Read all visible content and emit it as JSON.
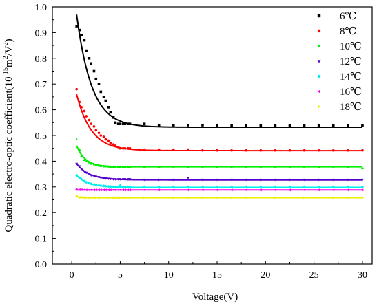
{
  "chart_data": {
    "type": "scatter",
    "xlabel": "Voltage(V)",
    "ylabel_parts": [
      "Quadratic electro-optic coefficient(10",
      "-15",
      "m",
      "2",
      "/V",
      "2",
      ")"
    ],
    "xlim": [
      -2,
      31
    ],
    "ylim": [
      0,
      1.0
    ],
    "xticks": [
      0,
      5,
      10,
      15,
      20,
      25,
      30
    ],
    "yticks": [
      0.0,
      0.1,
      0.2,
      0.3,
      0.4,
      0.5,
      0.6,
      0.7,
      0.8,
      0.9,
      1.0
    ],
    "xtick_labels": [
      "0",
      "5",
      "10",
      "15",
      "20",
      "25",
      "30"
    ],
    "ytick_labels": [
      "0.0",
      "0.1",
      "0.2",
      "0.3",
      "0.4",
      "0.5",
      "0.6",
      "0.7",
      "0.8",
      "0.9",
      "1.0"
    ],
    "grid": false,
    "legend_position": "top-right",
    "series": [
      {
        "name": "6℃",
        "color": "#000000",
        "marker": "square",
        "base": 0.532,
        "start": 0.97,
        "decay": 1.55,
        "x": [
          0.5,
          0.8,
          1.0,
          1.3,
          1.5,
          1.8,
          2.0,
          2.3,
          2.5,
          2.8,
          3.0,
          3.3,
          3.5,
          3.8,
          4.0,
          4.3,
          4.5,
          4.8,
          5.0,
          5.3,
          5.5,
          5.8,
          6.0,
          7.5,
          9,
          10.5,
          12,
          13.5,
          15,
          16.5,
          18,
          19.5,
          21,
          22.5,
          24,
          25.5,
          27,
          28.5,
          30
        ],
        "y": [
          0.925,
          0.91,
          0.89,
          0.87,
          0.83,
          0.8,
          0.78,
          0.75,
          0.72,
          0.7,
          0.67,
          0.65,
          0.635,
          0.61,
          0.59,
          0.57,
          0.55,
          0.545,
          0.545,
          0.545,
          0.545,
          0.545,
          0.545,
          0.545,
          0.54,
          0.54,
          0.54,
          0.54,
          0.538,
          0.538,
          0.538,
          0.538,
          0.538,
          0.538,
          0.538,
          0.538,
          0.538,
          0.538,
          0.538
        ]
      },
      {
        "name": "8℃",
        "color": "#ff0000",
        "marker": "circle",
        "base": 0.441,
        "start": 0.66,
        "decay": 1.5,
        "x": [
          0.5,
          0.8,
          1.0,
          1.3,
          1.5,
          1.8,
          2.0,
          2.3,
          2.5,
          2.8,
          3.0,
          3.3,
          3.5,
          3.8,
          4.0,
          4.3,
          4.5,
          4.8,
          5.0,
          5.3,
          5.5,
          5.8,
          6.0,
          7.5,
          9,
          10.5,
          12,
          13.5,
          15,
          16.5,
          18,
          19.5,
          21,
          22.5,
          24,
          25.5,
          27,
          28.5,
          30
        ],
        "y": [
          0.68,
          0.63,
          0.61,
          0.595,
          0.575,
          0.56,
          0.545,
          0.535,
          0.52,
          0.51,
          0.5,
          0.495,
          0.485,
          0.48,
          0.47,
          0.465,
          0.46,
          0.455,
          0.45,
          0.45,
          0.45,
          0.45,
          0.45,
          0.445,
          0.445,
          0.445,
          0.445,
          0.442,
          0.442,
          0.442,
          0.442,
          0.442,
          0.442,
          0.442,
          0.442,
          0.442,
          0.442,
          0.442,
          0.442
        ]
      },
      {
        "name": "10℃",
        "color": "#00ee00",
        "marker": "triangle-up",
        "base": 0.378,
        "start": 0.46,
        "decay": 0.9,
        "x": [
          0.5,
          0.8,
          1.0,
          1.3,
          1.5,
          1.8,
          2.0,
          2.3,
          2.5,
          2.8,
          3.0,
          3.3,
          3.5,
          3.8,
          4.0,
          4.3,
          4.5,
          4.8,
          5.0,
          5.3,
          5.5,
          5.8,
          6.0,
          7.5,
          9,
          10.5,
          12,
          13.5,
          15,
          16.5,
          18,
          19.5,
          21,
          22.5,
          24,
          25.5,
          27,
          28.5,
          30
        ],
        "y": [
          0.485,
          0.445,
          0.42,
          0.405,
          0.4,
          0.395,
          0.39,
          0.388,
          0.385,
          0.383,
          0.381,
          0.38,
          0.38,
          0.379,
          0.378,
          0.378,
          0.378,
          0.378,
          0.378,
          0.378,
          0.378,
          0.378,
          0.378,
          0.378,
          0.378,
          0.376,
          0.376,
          0.376,
          0.376,
          0.376,
          0.376,
          0.376,
          0.376,
          0.376,
          0.376,
          0.376,
          0.376,
          0.376,
          0.373
        ]
      },
      {
        "name": "12℃",
        "color": "#5500cc",
        "marker": "triangle-down",
        "base": 0.327,
        "start": 0.39,
        "decay": 1.3,
        "x": [
          0.5,
          0.8,
          1.0,
          1.3,
          1.5,
          1.8,
          2.0,
          2.3,
          2.5,
          2.8,
          3.0,
          3.3,
          3.5,
          3.8,
          4.0,
          4.3,
          4.5,
          4.8,
          5.0,
          5.3,
          5.5,
          5.8,
          6.0,
          7.5,
          9,
          10.5,
          12,
          13.5,
          15,
          16.5,
          18,
          19.5,
          21,
          22.5,
          24,
          25.5,
          27,
          28.5,
          30
        ],
        "y": [
          0.39,
          0.38,
          0.37,
          0.36,
          0.355,
          0.35,
          0.345,
          0.342,
          0.34,
          0.338,
          0.336,
          0.334,
          0.333,
          0.332,
          0.331,
          0.33,
          0.33,
          0.33,
          0.33,
          0.33,
          0.33,
          0.33,
          0.33,
          0.328,
          0.328,
          0.328,
          0.335,
          0.328,
          0.328,
          0.328,
          0.328,
          0.328,
          0.328,
          0.328,
          0.328,
          0.328,
          0.328,
          0.328,
          0.328
        ]
      },
      {
        "name": "14℃",
        "color": "#00eeee",
        "marker": "diamond",
        "base": 0.298,
        "start": 0.345,
        "decay": 1.2,
        "x": [
          0.5,
          0.8,
          1.0,
          1.3,
          1.5,
          1.8,
          2.0,
          2.3,
          2.5,
          2.8,
          3.0,
          3.3,
          3.5,
          3.8,
          4.0,
          4.3,
          4.5,
          4.8,
          5.0,
          5.3,
          5.5,
          5.8,
          6.0,
          7.5,
          9,
          10.5,
          12,
          13.5,
          15,
          16.5,
          18,
          19.5,
          21,
          22.5,
          24,
          25.5,
          27,
          28.5,
          30
        ],
        "y": [
          0.345,
          0.335,
          0.33,
          0.322,
          0.318,
          0.315,
          0.312,
          0.31,
          0.308,
          0.306,
          0.305,
          0.304,
          0.303,
          0.302,
          0.301,
          0.3,
          0.3,
          0.3,
          0.305,
          0.3,
          0.3,
          0.3,
          0.3,
          0.3,
          0.3,
          0.3,
          0.3,
          0.3,
          0.3,
          0.3,
          0.3,
          0.3,
          0.3,
          0.3,
          0.3,
          0.3,
          0.3,
          0.3,
          0.3
        ]
      },
      {
        "name": "16℃",
        "color": "#ee00ee",
        "marker": "triangle-left",
        "base": 0.288,
        "start": 0.288,
        "decay": 1.0,
        "x": [
          0.5,
          0.8,
          1.0,
          1.3,
          1.5,
          1.8,
          2.0,
          2.3,
          2.5,
          2.8,
          3.0,
          3.3,
          3.5,
          3.8,
          4.0,
          4.3,
          4.5,
          4.8,
          5.0,
          5.3,
          5.5,
          5.8,
          6.0,
          7.5,
          9,
          10.5,
          12,
          13.5,
          15,
          16.5,
          18,
          19.5,
          21,
          22.5,
          24,
          25.5,
          27,
          28.5,
          30
        ],
        "y": [
          0.29,
          0.289,
          0.289,
          0.289,
          0.288,
          0.288,
          0.288,
          0.288,
          0.288,
          0.288,
          0.288,
          0.288,
          0.288,
          0.288,
          0.288,
          0.288,
          0.288,
          0.288,
          0.288,
          0.288,
          0.288,
          0.288,
          0.288,
          0.288,
          0.288,
          0.288,
          0.288,
          0.288,
          0.288,
          0.288,
          0.288,
          0.288,
          0.288,
          0.288,
          0.288,
          0.288,
          0.288,
          0.288,
          0.288
        ]
      },
      {
        "name": "18℃",
        "color": "#eeee00",
        "marker": "triangle-right",
        "base": 0.258,
        "start": 0.262,
        "decay": 1.0,
        "x": [
          0.5,
          0.8,
          1.0,
          1.3,
          1.5,
          1.8,
          2.0,
          2.3,
          2.5,
          2.8,
          3.0,
          3.3,
          3.5,
          3.8,
          4.0,
          4.3,
          4.5,
          4.8,
          5.0,
          5.3,
          5.5,
          5.8,
          6.0,
          7.5,
          9,
          10.5,
          12,
          13.5,
          15,
          16.5,
          18,
          19.5,
          21,
          22.5,
          24,
          25.5,
          27,
          28.5,
          30
        ],
        "y": [
          0.265,
          0.258,
          0.258,
          0.258,
          0.258,
          0.258,
          0.258,
          0.258,
          0.258,
          0.258,
          0.258,
          0.258,
          0.258,
          0.258,
          0.258,
          0.258,
          0.258,
          0.258,
          0.258,
          0.258,
          0.258,
          0.258,
          0.258,
          0.258,
          0.258,
          0.258,
          0.258,
          0.258,
          0.258,
          0.258,
          0.258,
          0.258,
          0.258,
          0.258,
          0.258,
          0.258,
          0.258,
          0.258,
          0.258
        ]
      }
    ]
  }
}
